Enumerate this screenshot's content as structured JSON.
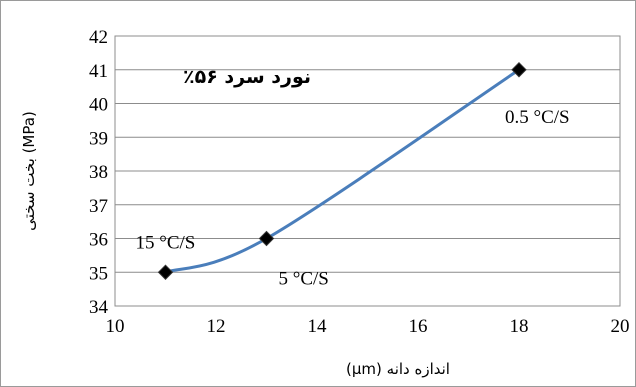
{
  "chart_data": {
    "type": "line",
    "title": "نورد سرد ۵۶٪",
    "xlabel": "اندازه دانه (μm)",
    "ylabel": "(MPa) بخت سختی",
    "xlim": [
      10,
      20
    ],
    "ylim": [
      34,
      42
    ],
    "xticks": [
      10,
      12,
      14,
      16,
      18,
      20
    ],
    "yticks": [
      34,
      35,
      36,
      37,
      38,
      39,
      40,
      41,
      42
    ],
    "grid": "horizontal",
    "series": [
      {
        "color": "#4a7ebb",
        "marker_color": "#000000",
        "points": [
          {
            "x": 11,
            "y": 35,
            "label": "15 °C/S"
          },
          {
            "x": 13,
            "y": 36,
            "label": "5 °C/S"
          },
          {
            "x": 18,
            "y": 41,
            "label": "0.5 °C/S"
          }
        ]
      }
    ]
  }
}
